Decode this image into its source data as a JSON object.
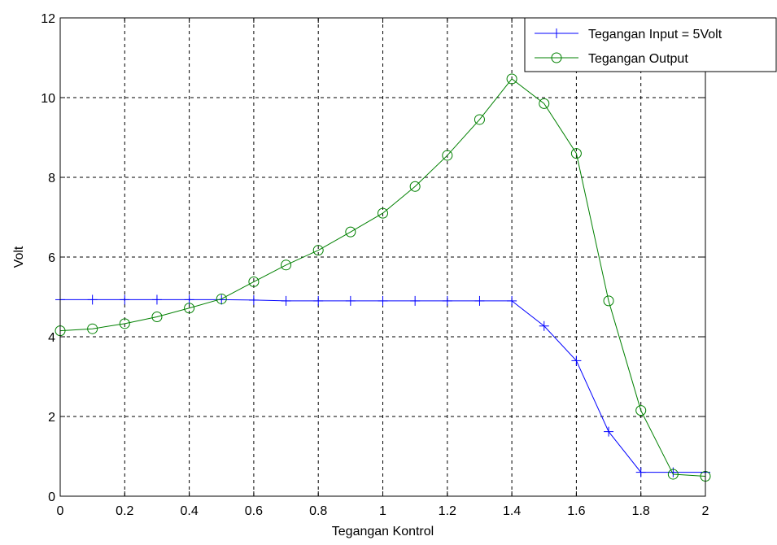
{
  "chart_data": {
    "type": "line",
    "title": "",
    "xlabel": "Tegangan Kontrol",
    "ylabel": "Volt",
    "xlim": [
      0,
      2
    ],
    "ylim": [
      0,
      12
    ],
    "xticks": [
      0,
      0.2,
      0.4,
      0.6,
      0.8,
      1,
      1.2,
      1.4,
      1.6,
      1.8,
      2
    ],
    "xtick_labels": [
      "0",
      "0.2",
      "0.4",
      "0.6",
      "0.8",
      "1",
      "1.2",
      "1.4",
      "1.6",
      "1.8",
      "2"
    ],
    "yticks": [
      0,
      2,
      4,
      6,
      8,
      10,
      12
    ],
    "ytick_labels": [
      "0",
      "2",
      "4",
      "6",
      "8",
      "10",
      "12"
    ],
    "grid": true,
    "legend_position": "top-right",
    "x": [
      0,
      0.1,
      0.2,
      0.3,
      0.4,
      0.5,
      0.6,
      0.7,
      0.8,
      0.9,
      1.0,
      1.1,
      1.2,
      1.3,
      1.4,
      1.5,
      1.6,
      1.7,
      1.8,
      1.9,
      2.0
    ],
    "series": [
      {
        "name": "Tegangan Input = 5Volt",
        "color": "#0000ff",
        "marker": "plus",
        "values": [
          4.93,
          4.93,
          4.93,
          4.93,
          4.93,
          4.93,
          4.92,
          4.9,
          4.9,
          4.9,
          4.9,
          4.9,
          4.9,
          4.9,
          4.9,
          4.27,
          3.4,
          1.62,
          0.6,
          0.6,
          0.6
        ]
      },
      {
        "name": "Tegangan Output",
        "color": "#008000",
        "marker": "circle",
        "values": [
          4.15,
          4.2,
          4.33,
          4.5,
          4.72,
          4.95,
          5.38,
          5.8,
          6.17,
          6.63,
          7.1,
          7.77,
          8.55,
          9.45,
          10.47,
          9.85,
          8.6,
          4.9,
          2.15,
          0.55,
          0.5
        ]
      }
    ]
  }
}
